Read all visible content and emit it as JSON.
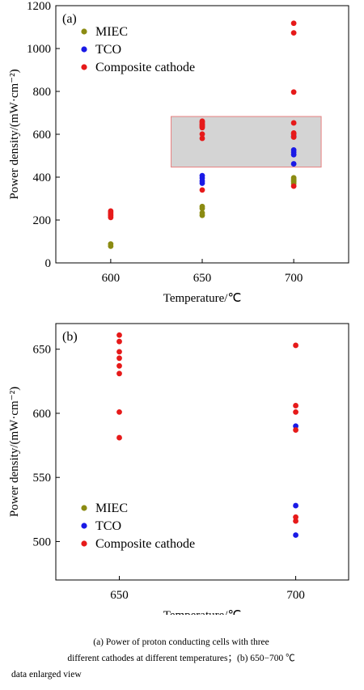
{
  "chart_data": [
    {
      "panel_label": "(a)",
      "type": "scatter",
      "xlabel": "Temperature/℃",
      "ylabel": "Power density/(mW·cm⁻²)",
      "x_ticks": [
        600,
        650,
        700
      ],
      "y_ticks": [
        0,
        200,
        400,
        600,
        800,
        1000,
        1200
      ],
      "xlim": [
        570,
        730
      ],
      "ylim": [
        0,
        1200
      ],
      "legend_position": "top-left",
      "highlight_box": {
        "x": [
          633,
          715
        ],
        "y": [
          447,
          683
        ]
      },
      "series": [
        {
          "name": "MIEC",
          "color": "#8b8b12",
          "points": [
            [
              600,
              78
            ],
            [
              600,
              88
            ],
            [
              650,
              222
            ],
            [
              650,
              233
            ],
            [
              650,
              254
            ],
            [
              650,
              263
            ],
            [
              700,
              370
            ],
            [
              700,
              378
            ],
            [
              700,
              384
            ],
            [
              700,
              390
            ],
            [
              700,
              397
            ]
          ]
        },
        {
          "name": "TCO",
          "color": "#1a1ae6",
          "points": [
            [
              650,
              372
            ],
            [
              650,
              382
            ],
            [
              650,
              396
            ],
            [
              650,
              407
            ],
            [
              700,
              462
            ],
            [
              700,
              505
            ],
            [
              700,
              517
            ],
            [
              700,
              527
            ],
            [
              700,
              590
            ]
          ]
        },
        {
          "name": "Composite cathode",
          "color": "#e61a1a",
          "points": [
            [
              600,
              212
            ],
            [
              600,
              220
            ],
            [
              600,
              228
            ],
            [
              600,
              236
            ],
            [
              600,
              242
            ],
            [
              650,
              340
            ],
            [
              650,
              581
            ],
            [
              650,
              601
            ],
            [
              650,
              631
            ],
            [
              650,
              637
            ],
            [
              650,
              643
            ],
            [
              650,
              648
            ],
            [
              650,
              656
            ],
            [
              650,
              661
            ],
            [
              700,
              358
            ],
            [
              700,
              587
            ],
            [
              700,
              601
            ],
            [
              700,
              606
            ],
            [
              700,
              653
            ],
            [
              700,
              797
            ],
            [
              700,
              1073
            ],
            [
              700,
              1118
            ]
          ]
        }
      ]
    },
    {
      "panel_label": "(b)",
      "type": "scatter",
      "xlabel": "Temperature/℃",
      "ylabel": "Power density/(mW·cm⁻²)",
      "x_ticks": [
        650,
        700
      ],
      "y_ticks": [
        500,
        550,
        600,
        650
      ],
      "xlim": [
        632,
        715
      ],
      "ylim": [
        470,
        670
      ],
      "legend_position": "bottom-left",
      "series": [
        {
          "name": "MIEC",
          "color": "#8b8b12",
          "points": []
        },
        {
          "name": "TCO",
          "color": "#1a1ae6",
          "points": [
            [
              700,
              505
            ],
            [
              700,
              528
            ],
            [
              700,
              590
            ]
          ]
        },
        {
          "name": "Composite cathode",
          "color": "#e61a1a",
          "points": [
            [
              650,
              581
            ],
            [
              650,
              601
            ],
            [
              650,
              631
            ],
            [
              650,
              637
            ],
            [
              650,
              643
            ],
            [
              650,
              648
            ],
            [
              650,
              656
            ],
            [
              650,
              661
            ],
            [
              700,
              516
            ],
            [
              700,
              519
            ],
            [
              700,
              587
            ],
            [
              700,
              601
            ],
            [
              700,
              606
            ],
            [
              700,
              653
            ]
          ]
        }
      ]
    }
  ],
  "caption": {
    "line1": "(a)  Power  of  proton  conducting  cells  with  three",
    "line2": "different cathodes at different temperatures；(b) 650−700 ℃",
    "line3": "data enlarged view"
  }
}
